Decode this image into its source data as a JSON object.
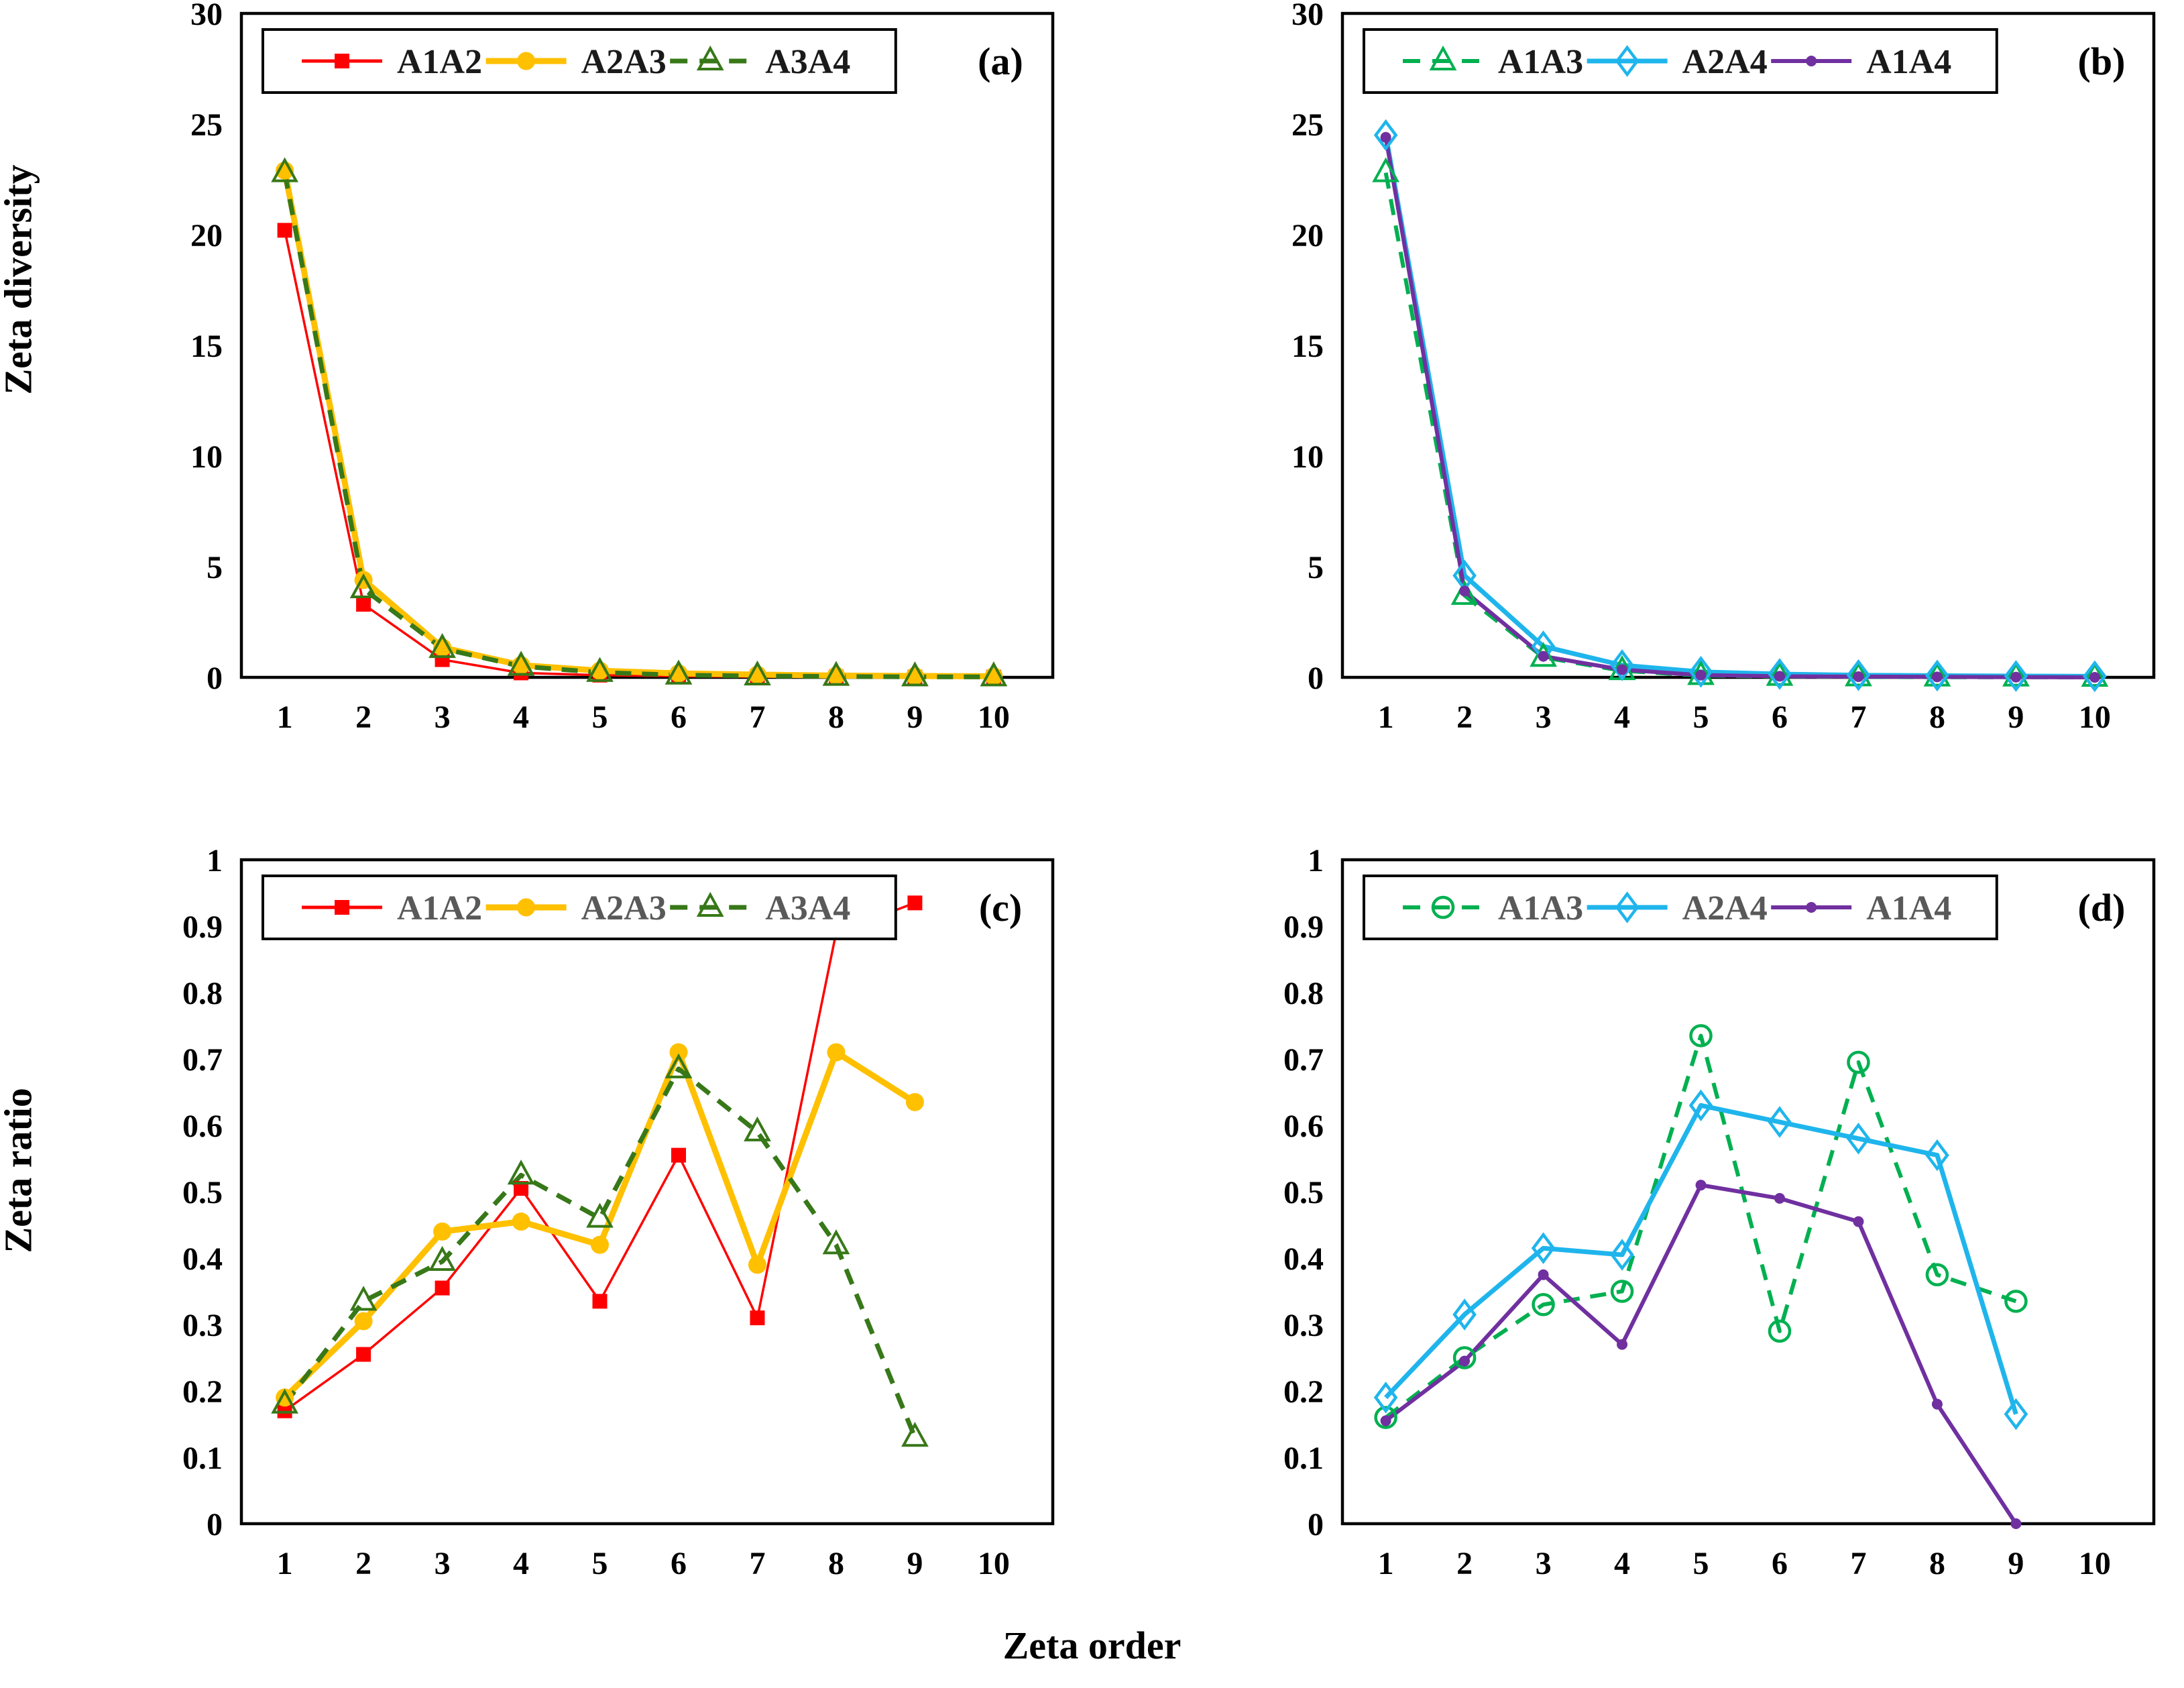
{
  "figure": {
    "ylabel_top": "Zeta diversity",
    "ylabel_bottom": "Zeta ratio",
    "xlabel": "Zeta order",
    "background": "#ffffff",
    "frame_color": "#000000"
  },
  "chart_data": [
    {
      "id": "a",
      "panel_label": "(a)",
      "type": "line",
      "x": [
        1,
        2,
        3,
        4,
        5,
        6,
        7,
        8,
        9,
        10
      ],
      "xtick_labels": [
        "1",
        "2",
        "3",
        "4",
        "5",
        "6",
        "7",
        "8",
        "9",
        "10"
      ],
      "ylim": [
        0,
        30
      ],
      "yticks": [
        0,
        5,
        10,
        15,
        20,
        25,
        30
      ],
      "ytick_labels": [
        "0",
        "5",
        "10",
        "15",
        "20",
        "25",
        "30"
      ],
      "xlabel": "",
      "ylabel": "Zeta diversity",
      "grid": false,
      "legend_position": "top-inside",
      "legend_text_color": "#1a1a1a",
      "series": [
        {
          "name": "A1A2",
          "color": "#ff0000",
          "marker": "square",
          "line": "solid",
          "line_width": 3.5,
          "values": [
            20.2,
            3.3,
            0.8,
            0.2,
            0.1,
            0.05,
            0.03,
            0.02,
            0.01,
            0.01
          ]
        },
        {
          "name": "A2A3",
          "color": "#ffc000",
          "marker": "circle",
          "line": "solid",
          "line_width": 9,
          "values": [
            22.9,
            4.4,
            1.35,
            0.55,
            0.3,
            0.18,
            0.12,
            0.08,
            0.06,
            0.05
          ]
        },
        {
          "name": "A3A4",
          "color": "#377818",
          "marker": "triangle-open",
          "line": "dashed",
          "line_width": 7,
          "values": [
            22.8,
            4.0,
            1.3,
            0.5,
            0.22,
            0.1,
            0.06,
            0.04,
            0.02,
            0.02
          ]
        }
      ]
    },
    {
      "id": "b",
      "panel_label": "(b)",
      "type": "line",
      "x": [
        1,
        2,
        3,
        4,
        5,
        6,
        7,
        8,
        9,
        10
      ],
      "xtick_labels": [
        "1",
        "2",
        "3",
        "4",
        "5",
        "6",
        "7",
        "8",
        "9",
        "10"
      ],
      "ylim": [
        0,
        30
      ],
      "yticks": [
        0,
        5,
        10,
        15,
        20,
        25,
        30
      ],
      "ytick_labels": [
        "0",
        "5",
        "10",
        "15",
        "20",
        "25",
        "30"
      ],
      "xlabel": "",
      "ylabel": "Zeta diversity",
      "grid": false,
      "legend_position": "top-inside",
      "legend_text_color": "#1a1a1a",
      "series": [
        {
          "name": "A1A3",
          "color": "#00b050",
          "marker": "triangle-open",
          "line": "dashed",
          "line_width": 6,
          "values": [
            22.8,
            3.7,
            0.9,
            0.3,
            0.08,
            0.04,
            0.02,
            0.01,
            0.01,
            0.0
          ]
        },
        {
          "name": "A2A4",
          "color": "#1fb5ec",
          "marker": "diamond-open",
          "line": "solid",
          "line_width": 7,
          "values": [
            24.5,
            4.6,
            1.4,
            0.55,
            0.25,
            0.15,
            0.1,
            0.08,
            0.06,
            0.05
          ]
        },
        {
          "name": "A1A4",
          "color": "#7030a0",
          "marker": "dot",
          "line": "solid",
          "line_width": 6,
          "values": [
            24.4,
            3.9,
            0.95,
            0.35,
            0.1,
            0.05,
            0.03,
            0.02,
            0.01,
            0.0
          ]
        }
      ]
    },
    {
      "id": "c",
      "panel_label": "(c)",
      "type": "line",
      "x": [
        1,
        2,
        3,
        4,
        5,
        6,
        7,
        8,
        9
      ],
      "xtick_labels": [
        "1",
        "2",
        "3",
        "4",
        "5",
        "6",
        "7",
        "8",
        "9",
        "10"
      ],
      "ylim": [
        0,
        1
      ],
      "yticks": [
        0,
        0.1,
        0.2,
        0.3,
        0.4,
        0.5,
        0.6,
        0.7,
        0.8,
        0.9,
        1
      ],
      "ytick_labels": [
        "0",
        "0.1",
        "0.2",
        "0.3",
        "0.4",
        "0.5",
        "0.6",
        "0.7",
        "0.8",
        "0.9",
        "1"
      ],
      "xlabel": "Zeta order",
      "ylabel": "Zeta ratio",
      "grid": false,
      "legend_position": "top-inside",
      "legend_text_color": "#595959",
      "series": [
        {
          "name": "A1A2",
          "color": "#ff0000",
          "marker": "square",
          "line": "solid",
          "line_width": 3.5,
          "values": [
            0.17,
            0.255,
            0.355,
            0.505,
            0.335,
            0.555,
            0.31,
            0.89,
            0.935
          ]
        },
        {
          "name": "A2A3",
          "color": "#ffc000",
          "marker": "circle",
          "line": "solid",
          "line_width": 9,
          "values": [
            0.19,
            0.305,
            0.44,
            0.455,
            0.42,
            0.71,
            0.39,
            0.71,
            0.635
          ]
        },
        {
          "name": "A3A4",
          "color": "#377818",
          "marker": "triangle-open",
          "line": "dashed",
          "line_width": 7,
          "values": [
            0.18,
            0.335,
            0.395,
            0.525,
            0.46,
            0.685,
            0.59,
            0.42,
            0.13
          ]
        }
      ]
    },
    {
      "id": "d",
      "panel_label": "(d)",
      "type": "line",
      "x": [
        1,
        2,
        3,
        4,
        5,
        6,
        7,
        8,
        9
      ],
      "xtick_labels": [
        "1",
        "2",
        "3",
        "4",
        "5",
        "6",
        "7",
        "8",
        "9",
        "10"
      ],
      "ylim": [
        0,
        1
      ],
      "yticks": [
        0,
        0.1,
        0.2,
        0.3,
        0.4,
        0.5,
        0.6,
        0.7,
        0.8,
        0.9,
        1
      ],
      "ytick_labels": [
        "0",
        "0.1",
        "0.2",
        "0.3",
        "0.4",
        "0.5",
        "0.6",
        "0.7",
        "0.8",
        "0.9",
        "1"
      ],
      "xlabel": "Zeta order",
      "ylabel": "Zeta ratio",
      "grid": false,
      "legend_position": "top-inside",
      "legend_text_color": "#595959",
      "series": [
        {
          "name": "A1A3",
          "color": "#00b050",
          "marker": "circle-open",
          "line": "dashed",
          "line_width": 6,
          "values": [
            0.16,
            0.25,
            0.33,
            0.35,
            0.735,
            0.29,
            0.695,
            0.375,
            0.335
          ]
        },
        {
          "name": "A2A4",
          "color": "#1fb5ec",
          "marker": "diamond-open",
          "line": "solid",
          "line_width": 7,
          "values": [
            0.19,
            0.315,
            0.415,
            0.405,
            0.63,
            0.605,
            0.58,
            0.555,
            0.165
          ]
        },
        {
          "name": "A1A4",
          "color": "#7030a0",
          "marker": "dot",
          "line": "solid",
          "line_width": 6,
          "values": [
            0.155,
            0.245,
            0.375,
            0.27,
            0.51,
            0.49,
            0.455,
            0.18,
            0.0
          ]
        }
      ]
    }
  ]
}
